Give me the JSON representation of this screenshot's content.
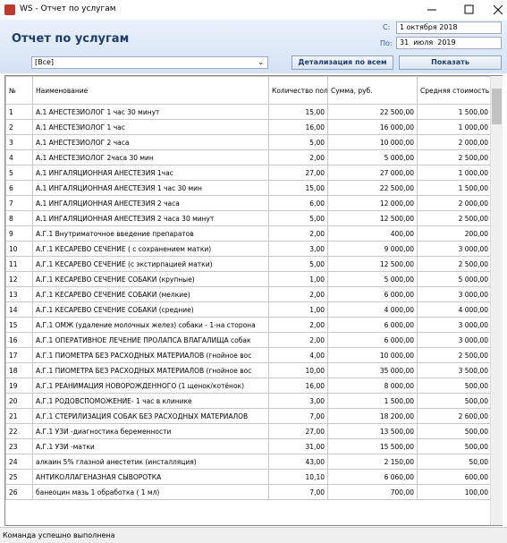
{
  "window_title": "WS - Отчет по услугам",
  "header": {
    "title": "Отчет по услугам",
    "from_label": "С:",
    "from_day": "1",
    "from_month": "октября",
    "from_year": "2018",
    "to_label": "По:",
    "to_day": "31",
    "to_month": "июля",
    "to_year": "2019",
    "filter": "[Все]",
    "detail_button": "Детализация по всем",
    "show_button": "Показать"
  },
  "table": {
    "columns": [
      "№",
      "Наименование",
      "Количество пользований",
      "Сумма, руб.",
      "Средняя стоимость, руб."
    ],
    "rows": [
      [
        "1",
        "А.1 АНЕСТЕЗИОЛОГ  1 час 30 минут",
        "15,00",
        "22 500,00",
        "1 500,00"
      ],
      [
        "2",
        "А.1 АНЕСТЕЗИОЛОГ 1 час",
        "16,00",
        "16 000,00",
        "1 000,00"
      ],
      [
        "3",
        "А.1 АНЕСТЕЗИОЛОГ 2 часа",
        "5,00",
        "10 000,00",
        "2 000,00"
      ],
      [
        "4",
        "А.1 АНЕСТЕЗИОЛОГ 2часа 30 мин",
        "2,00",
        "5 000,00",
        "2 500,00"
      ],
      [
        "5",
        "А.1 ИНГАЛЯЦИОННАЯ АНЕСТЕЗИЯ  1час",
        "27,00",
        "27 000,00",
        "1 000,00"
      ],
      [
        "6",
        "А.1 ИНГАЛЯЦИОННАЯ АНЕСТЕЗИЯ 1 час 30 мин",
        "15,00",
        "22 500,00",
        "1 500,00"
      ],
      [
        "7",
        "А.1 ИНГАЛЯЦИОННАЯ АНЕСТЕЗИЯ 2 часа",
        "6,00",
        "12 000,00",
        "2 000,00"
      ],
      [
        "8",
        "А.1 ИНГАЛЯЦИОННАЯ АНЕСТЕЗИЯ 2 часа 30 минут",
        "5,00",
        "12 500,00",
        "2 500,00"
      ],
      [
        "9",
        "А.Г.1 Внутриматочное введение препаратов",
        "2,00",
        "400,00",
        "200,00"
      ],
      [
        "10",
        "А.Г.1 КЕСАРЕВО СЕЧЕНИЕ ( с сохранением матки)",
        "3,00",
        "9 000,00",
        "3 000,00"
      ],
      [
        "11",
        "А.Г.1 КЕСАРЕВО СЕЧЕНИЕ (с экстирпацией матки)",
        "5,00",
        "12 500,00",
        "2 500,00"
      ],
      [
        "12",
        "А.Г.1 КЕСАРЕВО СЕЧЕНИЕ СОБАКИ (крупные)",
        "1,00",
        "5 000,00",
        "5 000,00"
      ],
      [
        "13",
        "А.Г.1 КЕСАРЕВО СЕЧЕНИЕ СОБАКИ (мелкие)",
        "2,00",
        "6 000,00",
        "3 000,00"
      ],
      [
        "14",
        "А.Г.1 КЕСАРЕВО СЕЧЕНИЕ СОБАКИ (средние)",
        "1,00",
        "4 000,00",
        "4 000,00"
      ],
      [
        "15",
        "А.Г.1 ОМЖ (удаление молочных желез) собаки - 1-на сторона",
        "2,00",
        "6 000,00",
        "3 000,00"
      ],
      [
        "16",
        "А.Г.1 ОПЕРАТИВНОЕ ЛЕЧЕНИЕ ПРОЛАПСА ВЛАГАЛИЩА собак",
        "2,00",
        "6 000,00",
        "3 000,00"
      ],
      [
        "17",
        "А.Г.1 ПИОМЕТРА БЕЗ РАСХОДНЫХ МАТЕРИАЛОВ (гнойное вос",
        "4,00",
        "10 000,00",
        "2 500,00"
      ],
      [
        "18",
        "А.Г.1 ПИОМЕТРА БЕЗ РАСХОДНЫХ МАТЕРИАЛОВ (гнойное вос",
        "10,00",
        "35 000,00",
        "3 500,00"
      ],
      [
        "19",
        "А.Г.1 РЕАНИМАЦИЯ НОВОРОЖДЕННОГО (1 щенок/котёнок)",
        "16,00",
        "8 000,00",
        "500,00"
      ],
      [
        "20",
        "А.Г.1 РОДОВСПОМОЖЕНИЕ- 1 час в клинике",
        "3,00",
        "1 500,00",
        "500,00"
      ],
      [
        "21",
        "А.Г.1 СТЕРИЛИЗАЦИЯ СОБАК БЕЗ РАСХОДНЫХ МАТЕРИАЛОВ",
        "7,00",
        "18 200,00",
        "2 600,00"
      ],
      [
        "22",
        "А.Г.1 УЗИ -диагностика беременности",
        "27,00",
        "13 500,00",
        "500,00"
      ],
      [
        "23",
        "А.Г.1 УЗИ -матки",
        "31,00",
        "15 500,00",
        "500,00"
      ],
      [
        "24",
        "алкаин 5% глазной анестетик (инсталляция)",
        "43,00",
        "2 150,00",
        "50,00"
      ],
      [
        "25",
        "АНТИКОЛЛАГЕНАЗНАЯ СЫВОРОТКА",
        "10,10",
        "6 060,00",
        "600,00"
      ],
      [
        "26",
        "банеоцин мазь 1 обработка ( 1 мл)",
        "7,00",
        "700,00",
        "100,00"
      ]
    ]
  },
  "status": "Команда успешно выполнена"
}
